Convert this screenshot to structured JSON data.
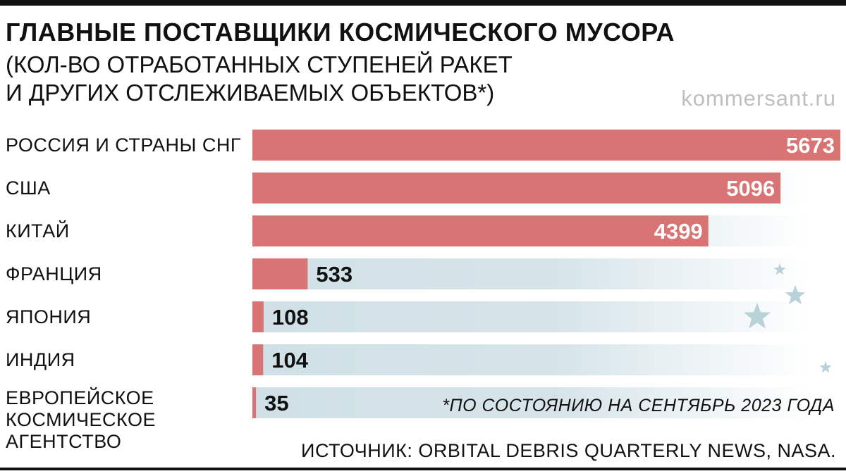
{
  "header": {
    "title": "ГЛАВНЫЕ ПОСТАВЩИКИ КОСМИЧЕСКОГО МУСОРА",
    "subtitle_line1": "(КОЛ-ВО ОТРАБОТАННЫХ СТУПЕНЕЙ РАКЕТ",
    "subtitle_line2": "И ДРУГИХ ОТСЛЕЖИВАЕМЫХ ОБЪЕКТОВ*)",
    "brand": "kommersant.ru"
  },
  "footnote": "*ПО СОСТОЯНИЮ НА СЕНТЯБРЬ 2023 ГОДА",
  "source": "ИСТОЧНИК: ORBITAL DEBRIS QUARTERLY NEWS, NASA.",
  "colors": {
    "bar": "#d87474",
    "track": "#cfe0e6",
    "star": "#b9d2da",
    "value_on_bar": "#ffffff",
    "value_off_bar": "#111111"
  },
  "chart_data": {
    "type": "bar",
    "orientation": "horizontal",
    "categories": [
      "РОССИЯ И СТРАНЫ СНГ",
      "США",
      "КИТАЙ",
      "ФРАНЦИЯ",
      "ЯПОНИЯ",
      "ИНДИЯ",
      "ЕВРОПЕЙСКОЕ КОСМИЧЕСКОЕ АГЕНТСТВО"
    ],
    "values": [
      5673,
      5096,
      4399,
      533,
      108,
      104,
      35
    ],
    "value_labels": [
      "5673",
      "5096",
      "4399",
      "533",
      "108",
      "104",
      "35"
    ],
    "xlim": [
      0,
      5673
    ],
    "grid": false
  }
}
